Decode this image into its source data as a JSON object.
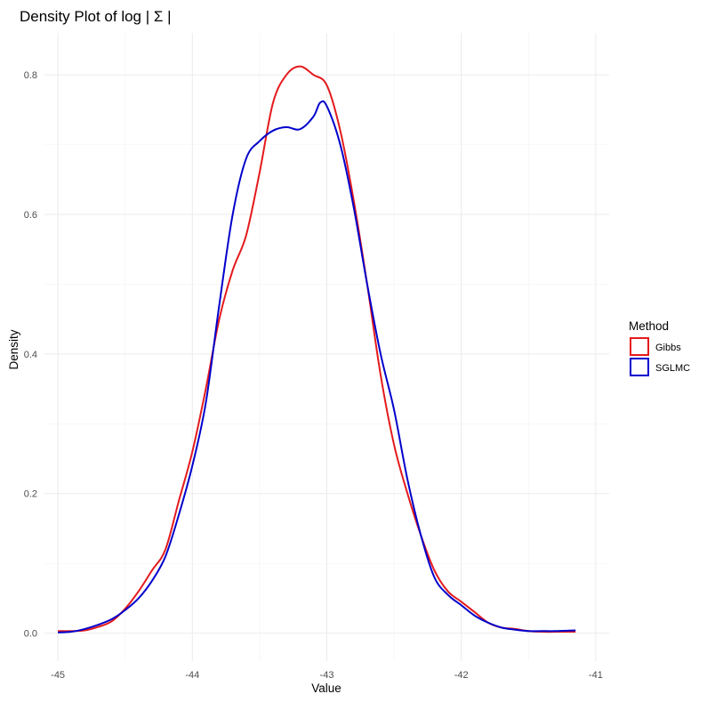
{
  "chart_data": {
    "type": "line",
    "title": "Density Plot of  log | Σ |",
    "xlabel": "Value",
    "ylabel": "Density",
    "xlim": [
      -45.1,
      -40.9
    ],
    "ylim": [
      -0.04,
      0.86
    ],
    "x_ticks": [
      -45,
      -44,
      -43,
      -42,
      -41
    ],
    "y_ticks": [
      0.0,
      0.2,
      0.4,
      0.6,
      0.8
    ],
    "y_tick_labels": [
      "0.0",
      "0.2",
      "0.4",
      "0.6",
      "0.8"
    ],
    "grid": true,
    "legend": {
      "title": "Method",
      "position": "right",
      "entries": [
        "Gibbs",
        "SGLMC"
      ]
    },
    "series": [
      {
        "name": "Gibbs",
        "color": "#e41a1c",
        "points": [
          [
            -45.0,
            0.003
          ],
          [
            -44.9,
            0.003
          ],
          [
            -44.8,
            0.004
          ],
          [
            -44.7,
            0.009
          ],
          [
            -44.6,
            0.017
          ],
          [
            -44.5,
            0.035
          ],
          [
            -44.4,
            0.06
          ],
          [
            -44.3,
            0.09
          ],
          [
            -44.2,
            0.12
          ],
          [
            -44.1,
            0.19
          ],
          [
            -44.0,
            0.26
          ],
          [
            -43.9,
            0.35
          ],
          [
            -43.8,
            0.45
          ],
          [
            -43.7,
            0.52
          ],
          [
            -43.6,
            0.57
          ],
          [
            -43.5,
            0.66
          ],
          [
            -43.4,
            0.76
          ],
          [
            -43.3,
            0.8
          ],
          [
            -43.2,
            0.812
          ],
          [
            -43.1,
            0.8
          ],
          [
            -43.0,
            0.785
          ],
          [
            -42.9,
            0.72
          ],
          [
            -42.8,
            0.62
          ],
          [
            -42.7,
            0.5
          ],
          [
            -42.6,
            0.37
          ],
          [
            -42.5,
            0.27
          ],
          [
            -42.4,
            0.2
          ],
          [
            -42.3,
            0.14
          ],
          [
            -42.2,
            0.09
          ],
          [
            -42.1,
            0.06
          ],
          [
            -42.0,
            0.045
          ],
          [
            -41.9,
            0.03
          ],
          [
            -41.8,
            0.015
          ],
          [
            -41.7,
            0.008
          ],
          [
            -41.6,
            0.006
          ],
          [
            -41.5,
            0.003
          ],
          [
            -41.4,
            0.002
          ],
          [
            -41.3,
            0.002
          ],
          [
            -41.2,
            0.002
          ],
          [
            -41.15,
            0.002
          ]
        ]
      },
      {
        "name": "SGLMC",
        "color": "#0000cc",
        "points": [
          [
            -45.0,
            0.001
          ],
          [
            -44.9,
            0.002
          ],
          [
            -44.8,
            0.006
          ],
          [
            -44.7,
            0.012
          ],
          [
            -44.6,
            0.02
          ],
          [
            -44.5,
            0.033
          ],
          [
            -44.4,
            0.05
          ],
          [
            -44.3,
            0.075
          ],
          [
            -44.2,
            0.11
          ],
          [
            -44.1,
            0.17
          ],
          [
            -44.0,
            0.24
          ],
          [
            -43.9,
            0.33
          ],
          [
            -43.8,
            0.47
          ],
          [
            -43.7,
            0.6
          ],
          [
            -43.6,
            0.68
          ],
          [
            -43.5,
            0.705
          ],
          [
            -43.4,
            0.72
          ],
          [
            -43.3,
            0.725
          ],
          [
            -43.2,
            0.722
          ],
          [
            -43.1,
            0.74
          ],
          [
            -43.05,
            0.76
          ],
          [
            -43.0,
            0.755
          ],
          [
            -42.9,
            0.7
          ],
          [
            -42.8,
            0.61
          ],
          [
            -42.7,
            0.5
          ],
          [
            -42.6,
            0.4
          ],
          [
            -42.5,
            0.32
          ],
          [
            -42.4,
            0.22
          ],
          [
            -42.3,
            0.14
          ],
          [
            -42.2,
            0.08
          ],
          [
            -42.1,
            0.055
          ],
          [
            -42.0,
            0.04
          ],
          [
            -41.9,
            0.025
          ],
          [
            -41.8,
            0.015
          ],
          [
            -41.7,
            0.008
          ],
          [
            -41.6,
            0.005
          ],
          [
            -41.5,
            0.003
          ],
          [
            -41.4,
            0.003
          ],
          [
            -41.3,
            0.003
          ],
          [
            -41.15,
            0.004
          ]
        ]
      }
    ]
  }
}
